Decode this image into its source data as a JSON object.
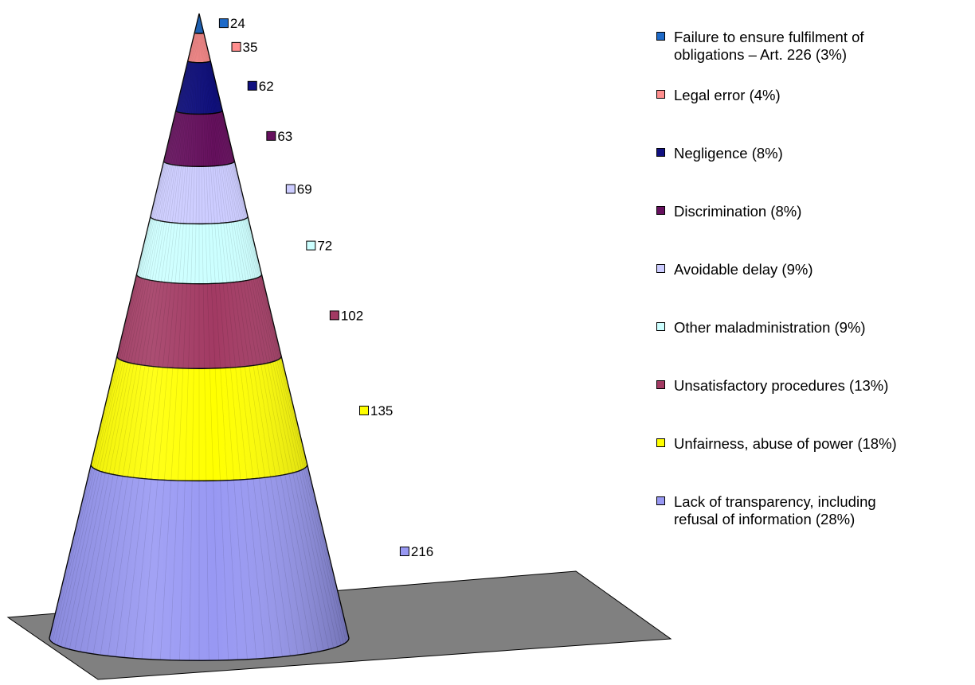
{
  "chart_data": {
    "type": "pyramid",
    "categories": [
      "Failure to ensure fulfilment of obligations – Art. 226",
      "Legal error",
      "Negligence",
      "Discrimination",
      "Avoidable delay",
      "Other maladministration",
      "Unsatisfactory procedures",
      "Unfairness, abuse of power",
      "Lack of transparency, including refusal of information"
    ],
    "values": [
      24,
      35,
      62,
      63,
      69,
      72,
      102,
      135,
      216
    ],
    "value_labels": [
      "24",
      "35",
      "62",
      "63",
      "69",
      "72",
      "102",
      "135",
      "216"
    ],
    "percentages": [
      3,
      4,
      8,
      8,
      9,
      9,
      13,
      18,
      28
    ],
    "colors": [
      "#1E6AC8",
      "#FF8E8E",
      "#101080",
      "#66105E",
      "#CCCCFF",
      "#CCFFFF",
      "#A23A63",
      "#FFFF00",
      "#9898F3"
    ],
    "legend_labels": [
      "Failure to ensure fulfilment of\nobligations – Art. 226 (3%)",
      "Legal error (4%)",
      "Negligence (8%)",
      "Discrimination (8%)",
      "Avoidable delay (9%)",
      "Other maladministration (9%)",
      "Unsatisfactory procedures (13%)",
      "Unfairness, abuse of power (18%)",
      "Lack of transparency, including\nrefusal of information (28%)"
    ],
    "legend_position": "right",
    "floor_color": "#808080",
    "grid": false
  }
}
